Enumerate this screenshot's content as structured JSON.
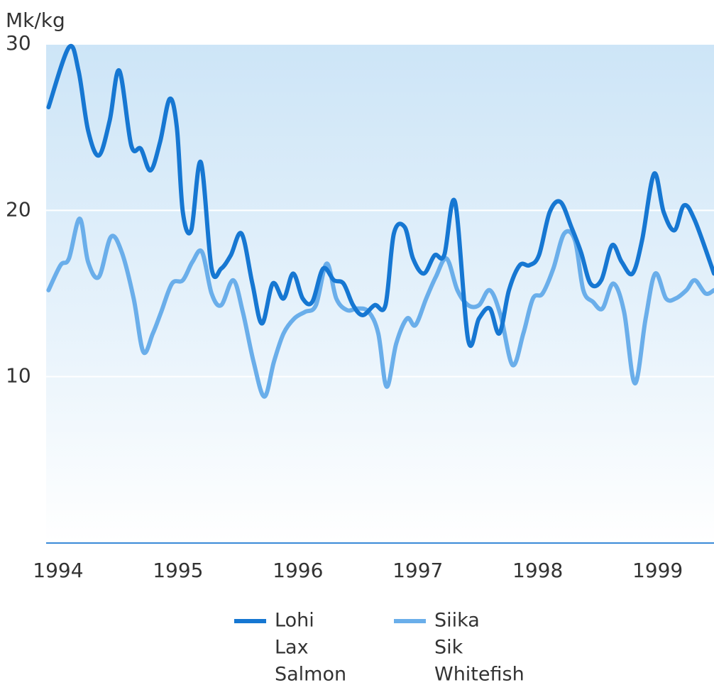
{
  "chart_data": {
    "type": "line",
    "y_label": "Mk/kg",
    "xlim": [
      1993.9,
      1999.47
    ],
    "xticks": [
      1994,
      1995,
      1996,
      1997,
      1998,
      1999
    ],
    "ylim": [
      0,
      30
    ],
    "yticks": [
      10,
      20,
      30
    ],
    "grid": true,
    "series": [
      {
        "name": [
          "Lohi",
          "Lax",
          "Salmon"
        ],
        "color": "#1677d2",
        "x": [
          1993.92,
          1994.09,
          1994.17,
          1994.25,
          1994.34,
          1994.43,
          1994.51,
          1994.61,
          1994.69,
          1994.77,
          1994.85,
          1994.93,
          1994.99,
          1995.04,
          1995.11,
          1995.19,
          1995.28,
          1995.36,
          1995.44,
          1995.53,
          1995.62,
          1995.7,
          1995.79,
          1995.88,
          1995.96,
          1996.04,
          1996.12,
          1996.21,
          1996.3,
          1996.38,
          1996.46,
          1996.54,
          1996.64,
          1996.73,
          1996.8,
          1996.89,
          1996.96,
          1997.05,
          1997.14,
          1997.22,
          1997.31,
          1997.42,
          1997.51,
          1997.6,
          1997.68,
          1997.76,
          1997.85,
          1997.93,
          1998.01,
          1998.1,
          1998.19,
          1998.28,
          1998.36,
          1998.44,
          1998.53,
          1998.62,
          1998.7,
          1998.79,
          1998.87,
          1998.97,
          1999.05,
          1999.14,
          1999.22,
          1999.31,
          1999.47
        ],
        "values": [
          26.2,
          29.8,
          28.4,
          24.8,
          23.3,
          25.4,
          28.4,
          23.9,
          23.7,
          22.4,
          24.1,
          26.7,
          25,
          19.9,
          18.8,
          22.9,
          16.5,
          16.5,
          17.3,
          18.6,
          15.6,
          13.2,
          15.6,
          14.7,
          16.2,
          14.7,
          14.5,
          16.5,
          15.8,
          15.6,
          14.3,
          13.7,
          14.3,
          14.3,
          18.6,
          19,
          17.1,
          16.2,
          17.3,
          17.3,
          20.5,
          12.2,
          13.5,
          14.1,
          12.6,
          15.2,
          16.7,
          16.7,
          17.3,
          19.9,
          20.5,
          19,
          17.5,
          15.6,
          15.8,
          17.9,
          16.9,
          16.2,
          18.2,
          22.2,
          19.9,
          18.8,
          20.3,
          19.4,
          16.2
        ]
      },
      {
        "name": [
          "Siika",
          "Sik",
          "Whitefish"
        ],
        "color": "#6aaeea",
        "x": [
          1993.92,
          1994.02,
          1994.09,
          1994.18,
          1994.25,
          1994.34,
          1994.44,
          1994.53,
          1994.63,
          1994.71,
          1994.79,
          1994.86,
          1994.95,
          1995.04,
          1995.12,
          1995.2,
          1995.28,
          1995.36,
          1995.46,
          1995.54,
          1995.63,
          1995.72,
          1995.8,
          1995.88,
          1995.97,
          1996.06,
          1996.15,
          1996.24,
          1996.32,
          1996.41,
          1996.5,
          1996.59,
          1996.67,
          1996.74,
          1996.82,
          1996.91,
          1996.98,
          1997.07,
          1997.15,
          1997.24,
          1997.33,
          1997.42,
          1997.51,
          1997.6,
          1997.69,
          1997.79,
          1997.88,
          1997.96,
          1998.04,
          1998.13,
          1998.22,
          1998.31,
          1998.38,
          1998.46,
          1998.54,
          1998.63,
          1998.72,
          1998.81,
          1998.9,
          1998.98,
          1999.07,
          1999.15,
          1999.24,
          1999.31,
          1999.4,
          1999.47
        ],
        "values": [
          15.2,
          16.7,
          17.1,
          19.5,
          16.9,
          16,
          18.4,
          17.5,
          14.7,
          11.5,
          12.6,
          13.9,
          15.6,
          15.8,
          16.9,
          17.5,
          15,
          14.3,
          15.8,
          13.9,
          10.9,
          8.8,
          10.9,
          12.6,
          13.5,
          13.9,
          14.3,
          16.8,
          14.7,
          14,
          14.1,
          13.9,
          12.6,
          9.4,
          12,
          13.5,
          13.1,
          14.7,
          16,
          17.1,
          15.2,
          14.3,
          14.3,
          15.2,
          13.7,
          10.7,
          12.6,
          14.7,
          15,
          16.5,
          18.6,
          18.2,
          15.2,
          14.5,
          14.1,
          15.6,
          13.9,
          9.6,
          13.5,
          16.2,
          14.7,
          14.7,
          15.2,
          15.8,
          15,
          15.2
        ]
      }
    ]
  }
}
